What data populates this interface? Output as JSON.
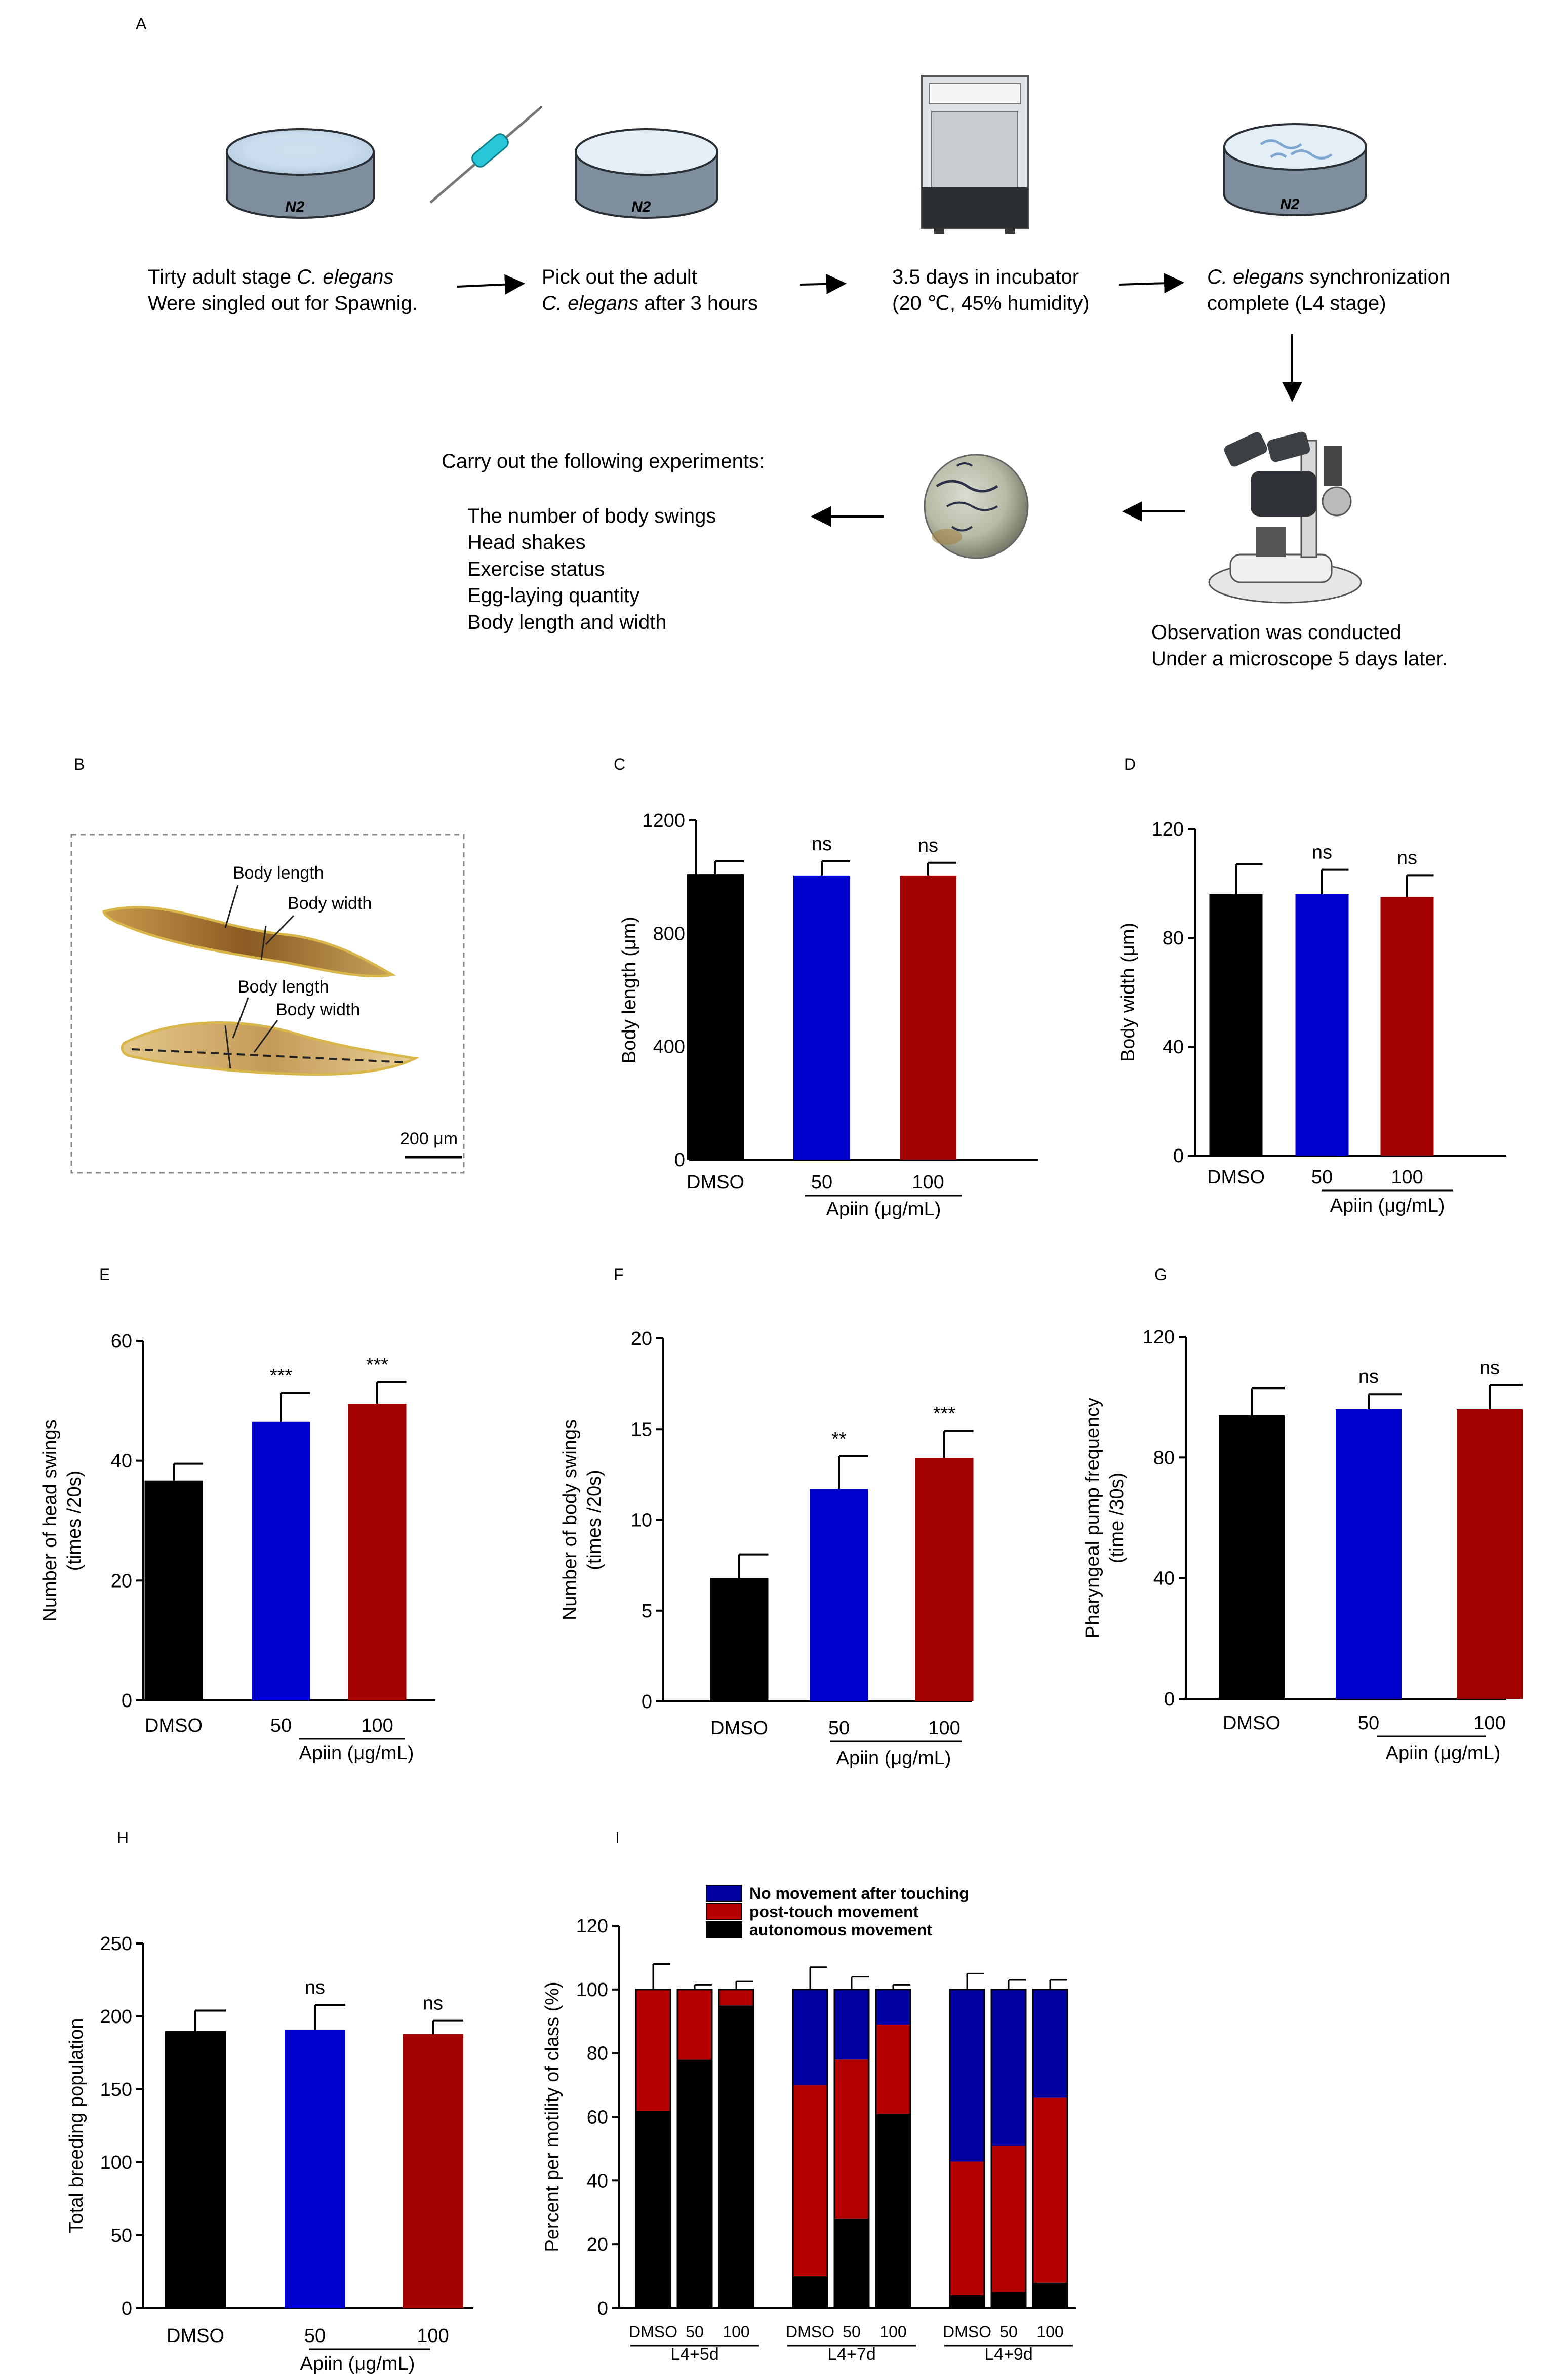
{
  "panel_labels": {
    "A": "A",
    "B": "B",
    "C": "C",
    "D": "D",
    "E": "E",
    "F": "F",
    "G": "G",
    "H": "H",
    "I": "I"
  },
  "panel_a": {
    "steps": [
      {
        "line1_pre": "Tirty adult stage ",
        "line1_italic": "C. elegans",
        "line1_post": "",
        "line2_pre": "",
        "line2_italic": "",
        "line2_post": "Were singled out for Spawnig."
      },
      {
        "line1_pre": "Pick out the adult",
        "line1_italic": "",
        "line1_post": "",
        "line2_pre": "",
        "line2_italic": "C. elegans",
        "line2_post": " after 3 hours"
      },
      {
        "line1_pre": "3.5 days in incubator",
        "line1_italic": "",
        "line1_post": "",
        "line2_pre": "(20 ℃, 45% humidity)",
        "line2_italic": "",
        "line2_post": ""
      },
      {
        "line1_pre": "",
        "line1_italic": "C. elegans",
        "line1_post": " synchronization",
        "line2_pre": "complete (L4 stage)",
        "line2_italic": "",
        "line2_post": ""
      }
    ],
    "dish_label": "N2",
    "microscope_caption": [
      "Observation was conducted",
      "Under a microscope 5 days later."
    ],
    "experiments_title": "Carry out the following experiments:",
    "experiments": [
      "The number of body swings",
      "Head shakes",
      "Exercise status",
      "Egg-laying quantity",
      "Body length and width"
    ]
  },
  "panel_b": {
    "annotations": [
      "Body length",
      "Body width",
      "Body length",
      "Body width"
    ],
    "scale_bar": "200 μm"
  },
  "colors": {
    "dmso": "#000000",
    "apiin50": "#0000cc",
    "apiin100": "#a30000",
    "no_movement": "#0000a0",
    "post_touch": "#b40000",
    "autonomous": "#000000"
  },
  "chart_data": [
    {
      "id": "C",
      "type": "bar",
      "ylabel": "Body length (μm)",
      "ylim": [
        0,
        1200
      ],
      "yticks": [
        0,
        400,
        800,
        1200
      ],
      "categories": [
        "DMSO",
        "50",
        "100"
      ],
      "values": [
        1010,
        1005,
        1005
      ],
      "errors": [
        45,
        50,
        45
      ],
      "significance": [
        "",
        "ns",
        "ns"
      ],
      "group_label": "Apiin (μg/mL)"
    },
    {
      "id": "D",
      "type": "bar",
      "ylabel": "Body width (μm)",
      "ylim": [
        0,
        120
      ],
      "yticks": [
        0,
        40,
        80,
        120
      ],
      "categories": [
        "DMSO",
        "50",
        "100"
      ],
      "values": [
        96,
        96,
        95
      ],
      "errors": [
        11,
        9,
        8
      ],
      "significance": [
        "",
        "ns",
        "ns"
      ],
      "group_label": "Apiin (μg/mL)"
    },
    {
      "id": "E",
      "type": "bar",
      "ylabel": [
        "Number of head swings",
        "(times /20s)"
      ],
      "ylim": [
        0,
        60
      ],
      "yticks": [
        0,
        20,
        40,
        60
      ],
      "categories": [
        "DMSO",
        "50",
        "100"
      ],
      "values": [
        36.7,
        46.5,
        49.5
      ],
      "errors": [
        2.8,
        4.8,
        3.6
      ],
      "significance": [
        "",
        "***",
        "***"
      ],
      "group_label": "Apiin (μg/mL)"
    },
    {
      "id": "F",
      "type": "bar",
      "ylabel": [
        "Number of body swings",
        "(times /20s)"
      ],
      "ylim": [
        0,
        20
      ],
      "yticks": [
        0,
        5,
        10,
        15,
        20
      ],
      "categories": [
        "DMSO",
        "50",
        "100"
      ],
      "values": [
        6.8,
        11.7,
        13.4
      ],
      "errors": [
        1.3,
        1.8,
        1.5
      ],
      "significance": [
        "",
        "**",
        "***"
      ],
      "group_label": "Apiin (μg/mL)"
    },
    {
      "id": "G",
      "type": "bar",
      "ylabel": [
        "Pharyngeal pump frequency",
        "(time /30s)"
      ],
      "ylim": [
        0,
        120
      ],
      "yticks": [
        0,
        40,
        80,
        120
      ],
      "categories": [
        "DMSO",
        "50",
        "100"
      ],
      "values": [
        94,
        96,
        96
      ],
      "errors": [
        9,
        5,
        8
      ],
      "significance": [
        "",
        "ns",
        "ns"
      ],
      "group_label": "Apiin (μg/mL)"
    },
    {
      "id": "H",
      "type": "bar",
      "ylabel": "Total breeding population",
      "ylim": [
        0,
        250
      ],
      "yticks": [
        0,
        50,
        100,
        150,
        200,
        250
      ],
      "categories": [
        "DMSO",
        "50",
        "100"
      ],
      "values": [
        190,
        191,
        188
      ],
      "errors": [
        14,
        17,
        9
      ],
      "significance": [
        "",
        "ns",
        "ns"
      ],
      "group_label": "Apiin (μg/mL)"
    },
    {
      "id": "I",
      "type": "stacked_bar",
      "ylabel": "Percent per motility of class (%)",
      "ylim": [
        0,
        120
      ],
      "yticks": [
        0,
        20,
        40,
        60,
        80,
        100,
        120
      ],
      "groups": [
        "L4+5d",
        "L4+7d",
        "L4+9d"
      ],
      "categories": [
        "DMSO",
        "50",
        "100"
      ],
      "legend": [
        "No movement after touching",
        "post-touch movement",
        "autonomous movement"
      ],
      "series": [
        {
          "name": "autonomous movement",
          "values": [
            [
              62,
              78,
              95
            ],
            [
              10,
              28,
              61
            ],
            [
              4,
              5,
              8
            ]
          ]
        },
        {
          "name": "post-touch movement",
          "values": [
            [
              38,
              22,
              5
            ],
            [
              60,
              50,
              28
            ],
            [
              42,
              46,
              58
            ]
          ]
        },
        {
          "name": "No movement after touching",
          "values": [
            [
              0,
              0,
              0
            ],
            [
              30,
              22,
              11
            ],
            [
              54,
              49,
              34
            ]
          ]
        }
      ],
      "errors": [
        [
          8,
          1.5,
          2.5
        ],
        [
          7,
          4,
          1.5
        ],
        [
          5,
          3,
          3
        ]
      ]
    }
  ]
}
